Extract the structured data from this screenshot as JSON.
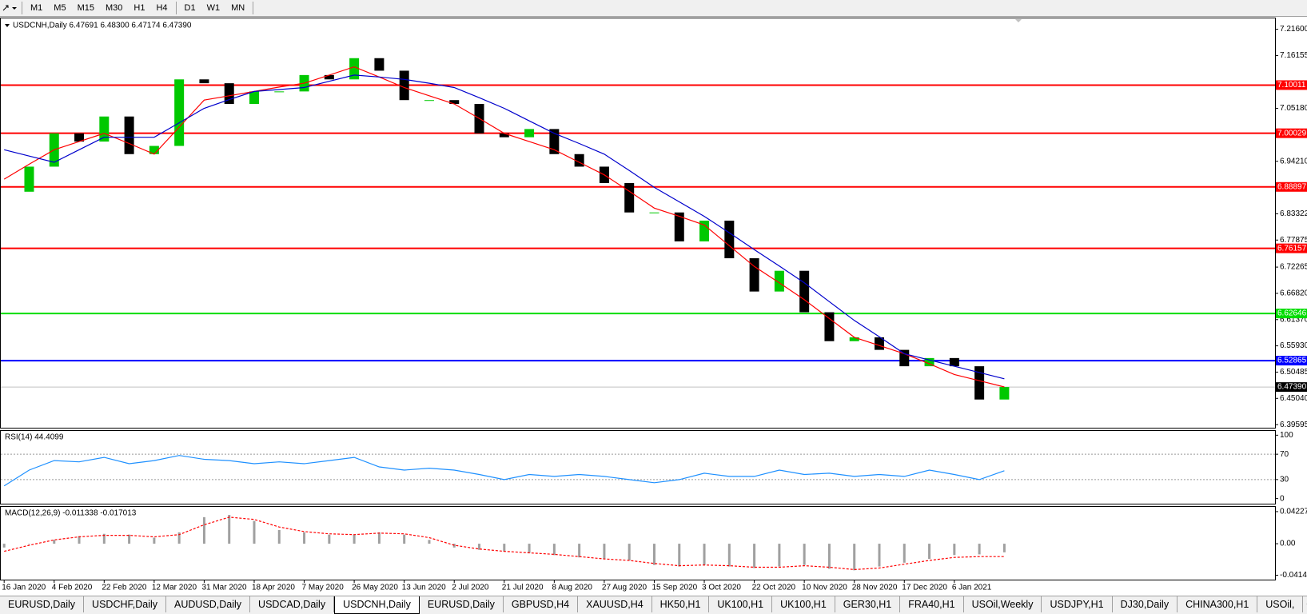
{
  "toolbar": {
    "periods": [
      "M1",
      "M5",
      "M15",
      "M30",
      "H1",
      "H4"
    ],
    "periods2": [
      "D1",
      "W1",
      "MN"
    ]
  },
  "chart_data": {
    "type": "candlestick",
    "title": "USDCNH,Daily 6.47691 6.48300 6.47174 6.47390",
    "categories": [
      "16 Jan 2020",
      null,
      "4 Feb 2020",
      null,
      "22 Feb 2020",
      null,
      "12 Mar 2020",
      null,
      "31 Mar 2020",
      null,
      "18 Apr 2020",
      null,
      "7 May 2020",
      null,
      "26 May 2020",
      null,
      "13 Jun 2020",
      null,
      "2 Jul 2020",
      null,
      "21 Jul 2020",
      null,
      "8 Aug 2020",
      null,
      "27 Aug 2020",
      null,
      "15 Sep 2020",
      null,
      "3 Oct 2020",
      null,
      "22 Oct 2020",
      null,
      "10 Nov 2020",
      null,
      "28 Nov 2020",
      null,
      "17 Dec 2020",
      null,
      "6 Jan 2021",
      null,
      null
    ],
    "close": [
      6.879,
      6.931,
      7.0,
      6.983,
      7.035,
      6.957,
      6.974,
      7.112,
      7.104,
      7.061,
      7.087,
      7.087,
      7.121,
      7.112,
      7.156,
      7.13,
      7.069,
      7.069,
      7.061,
      7.0,
      6.992,
      7.009,
      6.957,
      6.931,
      6.897,
      6.836,
      6.836,
      6.776,
      6.819,
      6.741,
      6.672,
      6.715,
      6.629,
      6.569,
      6.577,
      6.551,
      6.517,
      6.534,
      6.517,
      6.448,
      6.474
    ],
    "up_color": "#00c800",
    "down_color": "#000000",
    "overlays": [
      {
        "color": "#ff0000",
        "values": [
          6.905,
          6.936,
          6.966,
          6.983,
          7.0,
          6.979,
          6.957,
          7.013,
          7.069,
          7.078,
          7.087,
          7.096,
          7.104,
          7.121,
          7.138,
          7.117,
          7.095,
          7.078,
          7.061,
          7.031,
          7.0,
          6.983,
          6.966,
          6.94,
          6.914,
          6.88,
          6.845,
          6.828,
          6.81,
          6.767,
          6.724,
          6.69,
          6.655,
          6.616,
          6.577,
          6.56,
          6.543,
          6.522,
          6.5,
          6.487,
          6.474
        ]
      },
      {
        "color": "#0000cc",
        "values": [
          6.966,
          6.953,
          6.94,
          6.966,
          6.992,
          6.992,
          6.992,
          7.022,
          7.052,
          7.07,
          7.087,
          7.091,
          7.095,
          7.108,
          7.121,
          7.117,
          7.112,
          7.104,
          7.095,
          7.074,
          7.052,
          7.026,
          7.0,
          6.979,
          6.957,
          6.923,
          6.888,
          6.858,
          6.828,
          6.794,
          6.759,
          6.725,
          6.69,
          6.651,
          6.612,
          6.578,
          6.543,
          6.53,
          6.517,
          6.504,
          6.491
        ]
      }
    ],
    "ylim": [
      6.3895,
      7.2385
    ],
    "yticks": [
      {
        "value": 7.216,
        "label": "7.21600"
      },
      7.16155,
      {
        "value": 7.0518,
        "label": "7.05180"
      },
      {
        "value": 6.9421,
        "label": "6.94210"
      },
      6.83322,
      6.77875,
      6.72265,
      {
        "value": 6.6682,
        "label": "6.66820"
      },
      {
        "value": 6.6137,
        "label": "6.61370"
      },
      {
        "value": 6.5593,
        "label": "6.55930"
      },
      6.50485,
      {
        "value": 6.4504,
        "label": "6.45040"
      },
      6.39595
    ],
    "levels": [
      {
        "value": 7.10011,
        "color": "#ff0000"
      },
      {
        "value": 7.00029,
        "color": "#ff0000"
      },
      {
        "value": 6.88897,
        "color": "#ff0000"
      },
      {
        "value": 6.76157,
        "color": "#ff0000"
      },
      {
        "value": 6.62646,
        "color": "#00dd00"
      },
      {
        "value": 6.52865,
        "color": "#0000ff"
      },
      {
        "value": {
          "value": 6.4739,
          "label": "6.47390"
        },
        "color": "#c0c0c0",
        "label_color": "#000000"
      }
    ],
    "rsi": {
      "title": "RSI(14) 44.4099",
      "color": "#1e90ff",
      "values": [
        20,
        45,
        60,
        58,
        65,
        55,
        60,
        68,
        62,
        60,
        55,
        58,
        55,
        60,
        65,
        50,
        45,
        48,
        45,
        38,
        30,
        38,
        35,
        38,
        35,
        30,
        25,
        30,
        40,
        35,
        35,
        45,
        38,
        40,
        35,
        38,
        35,
        45,
        38,
        30,
        44
      ],
      "ylim": [
        -8,
        108
      ],
      "yticks": [
        100,
        70,
        30,
        0
      ],
      "dotted_levels": [
        70,
        30
      ]
    },
    "macd": {
      "title": "MACD(12,26,9) -0.011338 -0.017013",
      "histogram": {
        "color": "#a0a0a0",
        "values": [
          -0.005,
          0,
          0.005,
          0.01,
          0.013,
          0.012,
          0.008,
          0.015,
          0.035,
          0.038,
          0.03,
          0.018,
          0.015,
          0.012,
          0.012,
          0.015,
          0.012,
          0.005,
          -0.005,
          -0.008,
          -0.01,
          -0.012,
          -0.015,
          -0.018,
          -0.02,
          -0.022,
          -0.028,
          -0.03,
          -0.028,
          -0.03,
          -0.032,
          -0.03,
          -0.028,
          -0.033,
          -0.035,
          -0.03,
          -0.025,
          -0.02,
          -0.015,
          -0.014,
          -0.011338
        ]
      },
      "signal": {
        "color": "#ff0000",
        "values": [
          -0.01,
          -0.002,
          0.005,
          0.009,
          0.011,
          0.011,
          0.009,
          0.012,
          0.025,
          0.035,
          0.032,
          0.022,
          0.016,
          0.013,
          0.012,
          0.014,
          0.013,
          0.008,
          -0.002,
          -0.007,
          -0.01,
          -0.012,
          -0.014,
          -0.017,
          -0.02,
          -0.022,
          -0.026,
          -0.029,
          -0.028,
          -0.029,
          -0.031,
          -0.031,
          -0.029,
          -0.031,
          -0.034,
          -0.032,
          -0.027,
          -0.022,
          -0.018,
          -0.017,
          -0.017013
        ]
      },
      "ylim": [
        -0.0473,
        0.0496
      ],
      "yticks": [
        0.042275,
        {
          "value": 0,
          "label": "0.00"
        },
        -0.04148
      ]
    }
  },
  "tabs": [
    "EURUSD,Daily",
    "USDCHF,Daily",
    "AUDUSD,Daily",
    "USDCAD,Daily",
    "USDCNH,Daily",
    "EURUSD,Daily",
    "GBPUSD,H4",
    "XAUUSD,H4",
    "HK50,H1",
    "UK100,H1",
    "UK100,H1",
    "GER30,H1",
    "FRA40,H1",
    "USOil,Weekly",
    "USDJPY,H1",
    "DJ30,Daily",
    "CHINA300,H1",
    "USOil,"
  ],
  "active_tab": 4
}
